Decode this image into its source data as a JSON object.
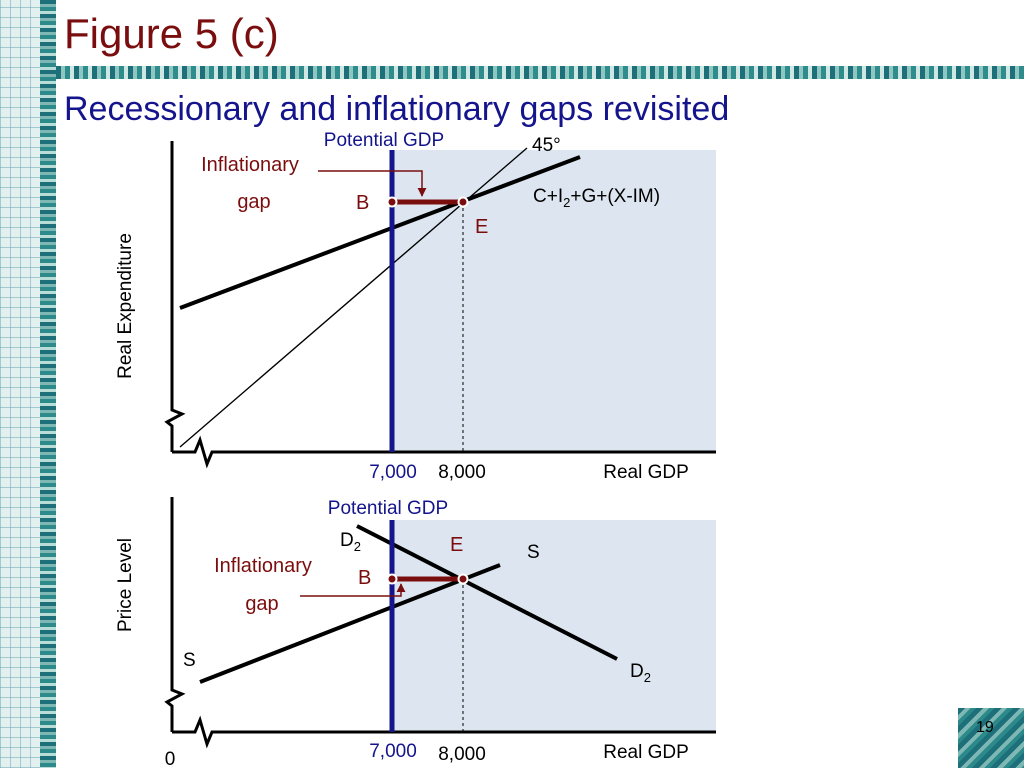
{
  "slide": {
    "title": "Figure 5 (c)",
    "subtitle": "Recessionary and inflationary gaps revisited",
    "page_number": "19"
  },
  "colors": {
    "title": "#7a0e0e",
    "subtitle": "#14148c",
    "potential_gdp_line": "#14148c",
    "gap_bar": "#7a0e0e",
    "shaded_region": "#dde6f0",
    "curves": "#000000",
    "annotation_red": "#7a0e0e",
    "annotation_blue": "#14148c"
  },
  "chart_data": [
    {
      "type": "line",
      "xlabel": "Real GDP",
      "ylabel": "Real Expenditure",
      "x_ticks": [
        "7,000",
        "8,000"
      ],
      "x_tick_values": [
        7000,
        8000
      ],
      "shaded_region": "right of Potential GDP",
      "series": [
        {
          "name": "C+I2+G+(X-IM)",
          "label_parts": [
            "C+I",
            "2",
            "+G+(X-IM)"
          ],
          "kind": "expenditure"
        },
        {
          "name": "45°",
          "label": "45°",
          "kind": "45-degree line"
        }
      ],
      "vertical_line": {
        "label": "Potential GDP",
        "x": 7000
      },
      "dashed_line": {
        "x": 8000
      },
      "points": [
        {
          "label": "B",
          "x": 7000
        },
        {
          "label": "E",
          "x": 8000
        }
      ],
      "gap": {
        "label_line1": "Inflationary",
        "label_line2": "gap",
        "from_x": 7000,
        "to_x": 8000
      }
    },
    {
      "type": "line",
      "xlabel": "Real GDP",
      "ylabel": "Price Level",
      "origin_label": "0",
      "x_ticks": [
        "7,000",
        "8,000"
      ],
      "x_tick_values": [
        7000,
        8000
      ],
      "shaded_region": "right of Potential GDP",
      "series": [
        {
          "name": "D2",
          "label_parts": [
            "D",
            "2"
          ],
          "kind": "aggregate demand"
        },
        {
          "name": "S",
          "label": "S",
          "kind": "aggregate supply"
        }
      ],
      "vertical_line": {
        "label": "Potential GDP",
        "x": 7000
      },
      "dashed_line": {
        "x": 8000
      },
      "points": [
        {
          "label": "B",
          "x": 7000
        },
        {
          "label": "E",
          "x": 8000
        }
      ],
      "gap": {
        "label_line1": "Inflationary",
        "label_line2": "gap",
        "from_x": 7000,
        "to_x": 8000
      }
    }
  ]
}
